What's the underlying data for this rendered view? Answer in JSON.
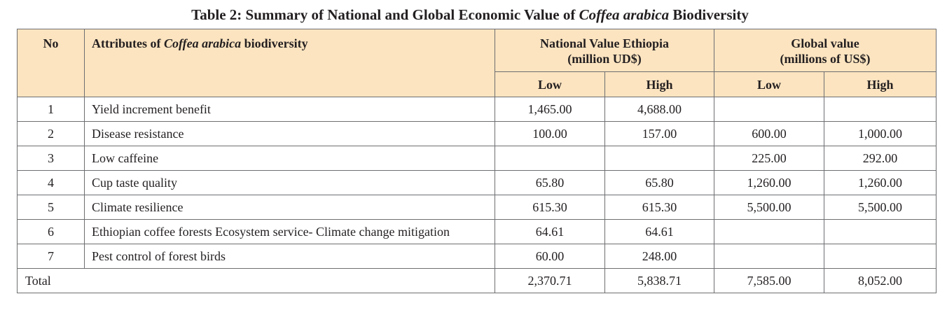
{
  "caption": {
    "prefix": "Table 2: Summary of National and Global Economic Value of ",
    "italic": "Coffea arabica",
    "suffix": " Biodiversity"
  },
  "header": {
    "no": "No",
    "attr_prefix": "Attributes of ",
    "attr_italic": "Coffea arabica",
    "attr_suffix": " biodiversity",
    "national_line1": "National Value Ethiopia",
    "national_line2": "(million UD$)",
    "global_line1": "Global value",
    "global_line2": "(millions of US$)",
    "low": "Low",
    "high": "High"
  },
  "rows": [
    {
      "no": "1",
      "attribute": "Yield increment benefit",
      "nat_low": "1,465.00",
      "nat_high": "4,688.00",
      "glob_low": "",
      "glob_high": ""
    },
    {
      "no": "2",
      "attribute": "Disease resistance",
      "nat_low": "100.00",
      "nat_high": "157.00",
      "glob_low": "600.00",
      "glob_high": "1,000.00"
    },
    {
      "no": "3",
      "attribute": "Low caffeine",
      "nat_low": "",
      "nat_high": "",
      "glob_low": "225.00",
      "glob_high": "292.00"
    },
    {
      "no": "4",
      "attribute": "Cup taste quality",
      "nat_low": "65.80",
      "nat_high": "65.80",
      "glob_low": "1,260.00",
      "glob_high": "1,260.00"
    },
    {
      "no": "5",
      "attribute": "Climate resilience",
      "nat_low": "615.30",
      "nat_high": "615.30",
      "glob_low": "5,500.00",
      "glob_high": "5,500.00"
    },
    {
      "no": "6",
      "attribute": "Ethiopian coffee forests Ecosystem service- Climate change mitigation",
      "nat_low": "64.61",
      "nat_high": "64.61",
      "glob_low": "",
      "glob_high": ""
    },
    {
      "no": "7",
      "attribute": "Pest control of forest birds",
      "nat_low": "60.00",
      "nat_high": "248.00",
      "glob_low": "",
      "glob_high": ""
    }
  ],
  "total": {
    "label": "Total",
    "nat_low": "2,370.71",
    "nat_high": "5,838.71",
    "glob_low": "7,585.00",
    "glob_high": "8,052.00"
  }
}
